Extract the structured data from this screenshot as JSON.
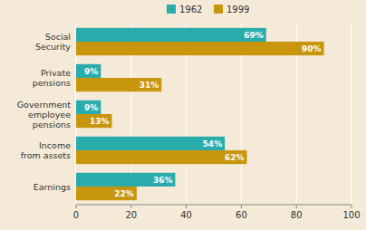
{
  "chart_data": {
    "type": "bar",
    "orientation": "horizontal",
    "categories": [
      "Social\nSecurity",
      "Private\npensions",
      "Government\nemployee\npensions",
      "Income\nfrom assets",
      "Earnings"
    ],
    "series": [
      {
        "name": "1962",
        "color": "#2aacad",
        "values": [
          69,
          9,
          9,
          54,
          36
        ],
        "value_labels": [
          "69%",
          "9%",
          "9%",
          "54%",
          "36%"
        ]
      },
      {
        "name": "1999",
        "color": "#c8960c",
        "values": [
          90,
          31,
          13,
          62,
          22
        ],
        "value_labels": [
          "90%",
          "31%",
          "13%",
          "62%",
          "22%"
        ]
      }
    ],
    "xlim": [
      0,
      100
    ],
    "xticks": [
      0,
      20,
      40,
      60,
      80,
      100
    ],
    "grid": true,
    "legend": "top",
    "data_labels": true
  }
}
